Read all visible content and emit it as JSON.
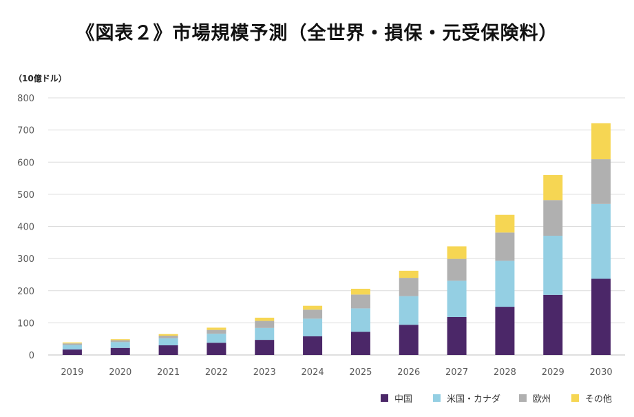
{
  "title": "《図表２》市場規模予測（全世界・損保・元受保険料）",
  "colors": {
    "中国": "#4b2768",
    "米国・カナダ": "#94cfe3",
    "欧州": "#b0b0b0",
    "その他": "#f6d653",
    "grid": "#dcdcdc"
  },
  "chart_data": {
    "type": "bar",
    "stacked": true,
    "title": "《図表２》市場規模予測（全世界・損保・元受保険料）",
    "unit": "（10億ドル）",
    "categories": [
      "2019",
      "2020",
      "2021",
      "2022",
      "2023",
      "2024",
      "2025",
      "2026",
      "2027",
      "2028",
      "2029",
      "2030"
    ],
    "series": [
      {
        "name": "中国",
        "values": [
          17,
          22,
          30,
          38,
          47,
          58,
          72,
          94,
          118,
          150,
          187,
          237
        ]
      },
      {
        "name": "米国・カナダ",
        "values": [
          14,
          18,
          22,
          28,
          37,
          55,
          73,
          89,
          113,
          143,
          184,
          233
        ]
      },
      {
        "name": "欧州",
        "values": [
          5,
          6,
          8,
          12,
          22,
          28,
          43,
          57,
          68,
          88,
          111,
          139
        ]
      },
      {
        "name": "その他",
        "values": [
          3,
          3,
          5,
          7,
          10,
          12,
          18,
          22,
          39,
          55,
          78,
          112
        ]
      }
    ],
    "ylim": [
      0,
      800
    ],
    "yticks": [
      0,
      100,
      200,
      300,
      400,
      500,
      600,
      700,
      800
    ],
    "grid": true,
    "legend_position": "bottom-right"
  }
}
